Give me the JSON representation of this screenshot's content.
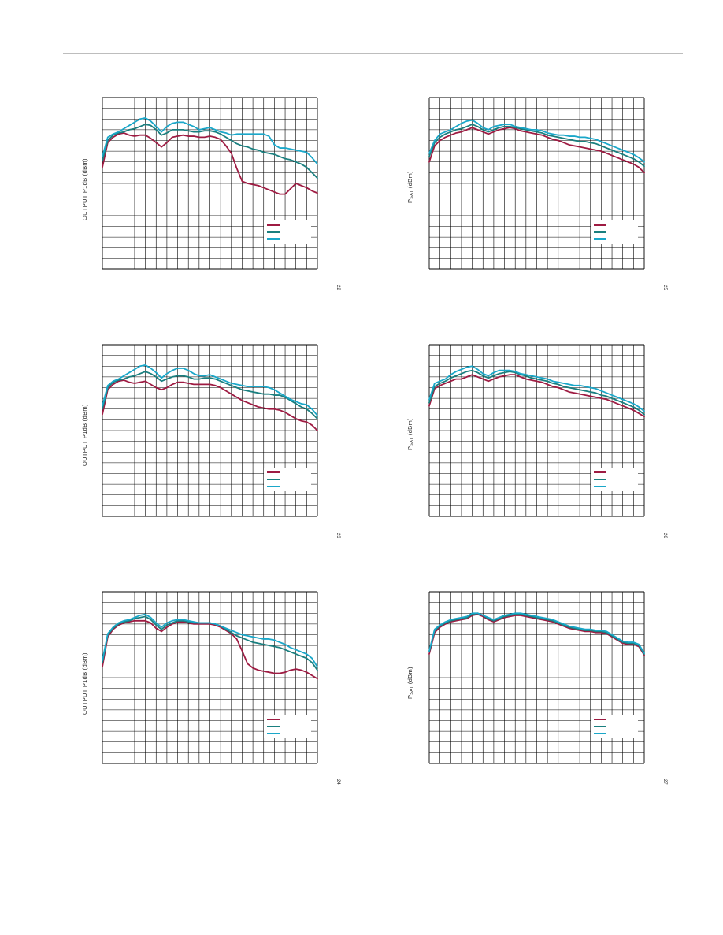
{
  "colors": {
    "series_a": "#9e1b42",
    "series_b": "#1a7f7f",
    "series_c": "#1aa7c9",
    "grid": "#000000"
  },
  "chart_data": [
    {
      "type": "line",
      "panel": "top-left",
      "ylabel": "OUTPUT P1dB (dBm)",
      "figure_number": "22",
      "grid": true,
      "legend_placement": "bottom-right",
      "x": [
        0,
        0.5,
        1,
        1.5,
        2,
        2.5,
        3,
        3.5,
        4,
        4.5,
        5,
        5.5,
        6,
        6.5,
        7,
        7.5,
        8,
        8.5,
        9,
        9.5,
        10,
        10.5,
        11,
        11.5,
        12,
        12.5,
        13,
        13.5,
        14,
        14.5,
        15,
        15.5,
        16,
        16.5,
        17,
        17.5,
        18,
        18.5,
        19,
        19.5,
        20
      ],
      "xlim": [
        0,
        20
      ],
      "ylim": [
        0,
        16
      ],
      "series": [
        {
          "values": [
            9.5,
            11.8,
            12.3,
            12.6,
            12.7,
            12.5,
            12.4,
            12.5,
            12.5,
            12.2,
            11.8,
            11.4,
            11.8,
            12.3,
            12.4,
            12.5,
            12.4,
            12.4,
            12.3,
            12.3,
            12.4,
            12.3,
            12.1,
            11.5,
            10.8,
            9.4,
            8.2,
            8.0,
            7.9,
            7.8,
            7.6,
            7.4,
            7.2,
            7.0,
            7.0,
            7.5,
            8.0,
            7.8,
            7.6,
            7.3,
            7.1
          ]
        },
        {
          "values": [
            10.1,
            12.0,
            12.5,
            12.7,
            12.8,
            13.0,
            13.1,
            13.3,
            13.5,
            13.4,
            13.0,
            12.5,
            12.7,
            13.0,
            13.0,
            13.0,
            12.9,
            12.8,
            12.8,
            12.9,
            12.9,
            12.8,
            12.6,
            12.3,
            12.0,
            11.7,
            11.5,
            11.4,
            11.2,
            11.1,
            10.9,
            10.8,
            10.7,
            10.5,
            10.3,
            10.2,
            10.0,
            9.8,
            9.5,
            9.0,
            8.5
          ]
        },
        {
          "values": [
            10.5,
            12.3,
            12.6,
            12.8,
            13.1,
            13.4,
            13.7,
            14.0,
            14.1,
            13.8,
            13.3,
            12.8,
            13.3,
            13.6,
            13.7,
            13.7,
            13.5,
            13.3,
            13.0,
            13.1,
            13.2,
            13.0,
            12.8,
            12.7,
            12.5,
            12.6,
            12.6,
            12.6,
            12.6,
            12.6,
            12.6,
            12.4,
            11.6,
            11.3,
            11.3,
            11.2,
            11.1,
            11.0,
            10.9,
            10.4,
            9.8
          ]
        }
      ]
    },
    {
      "type": "line",
      "panel": "top-right",
      "ylabel": "PSAT (dBm)",
      "figure_number": "25",
      "grid": true,
      "legend_placement": "bottom-right",
      "x": [
        0,
        0.5,
        1,
        1.5,
        2,
        2.5,
        3,
        3.5,
        4,
        4.5,
        5,
        5.5,
        6,
        6.5,
        7,
        7.5,
        8,
        8.5,
        9,
        9.5,
        10,
        10.5,
        11,
        11.5,
        12,
        12.5,
        13,
        13.5,
        14,
        14.5,
        15,
        15.5,
        16,
        16.5,
        17,
        17.5,
        18,
        18.5,
        19,
        19.5,
        20
      ],
      "xlim": [
        0,
        20
      ],
      "ylim": [
        0,
        16
      ],
      "series": [
        {
          "values": [
            10.0,
            11.5,
            12.0,
            12.3,
            12.5,
            12.7,
            12.8,
            13.0,
            13.2,
            13.0,
            12.8,
            12.6,
            12.8,
            13.0,
            13.1,
            13.2,
            13.1,
            12.9,
            12.8,
            12.7,
            12.6,
            12.5,
            12.3,
            12.1,
            12.0,
            11.8,
            11.6,
            11.5,
            11.4,
            11.3,
            11.2,
            11.1,
            11.0,
            10.8,
            10.6,
            10.4,
            10.2,
            10.0,
            9.8,
            9.5,
            9.0
          ]
        },
        {
          "values": [
            10.5,
            11.8,
            12.3,
            12.6,
            12.8,
            13.0,
            13.1,
            13.3,
            13.5,
            13.3,
            13.0,
            12.8,
            13.0,
            13.2,
            13.3,
            13.3,
            13.2,
            13.1,
            13.0,
            12.9,
            12.8,
            12.7,
            12.5,
            12.4,
            12.3,
            12.2,
            12.1,
            12.0,
            11.9,
            11.9,
            11.8,
            11.7,
            11.5,
            11.3,
            11.1,
            10.9,
            10.7,
            10.5,
            10.3,
            10.0,
            9.6
          ]
        },
        {
          "values": [
            10.8,
            12.0,
            12.6,
            12.8,
            13.0,
            13.3,
            13.6,
            13.8,
            13.9,
            13.6,
            13.2,
            13.0,
            13.3,
            13.4,
            13.5,
            13.5,
            13.3,
            13.2,
            13.1,
            13.0,
            13.0,
            12.9,
            12.7,
            12.6,
            12.5,
            12.5,
            12.4,
            12.4,
            12.3,
            12.3,
            12.2,
            12.1,
            11.9,
            11.7,
            11.5,
            11.3,
            11.1,
            10.9,
            10.7,
            10.4,
            10.0
          ]
        }
      ]
    },
    {
      "type": "line",
      "panel": "middle-left",
      "ylabel": "OUTPUT P1dB (dBm)",
      "figure_number": "23",
      "grid": true,
      "legend_placement": "bottom-right",
      "x": [
        0,
        0.5,
        1,
        1.5,
        2,
        2.5,
        3,
        3.5,
        4,
        4.5,
        5,
        5.5,
        6,
        6.5,
        7,
        7.5,
        8,
        8.5,
        9,
        9.5,
        10,
        10.5,
        11,
        11.5,
        12,
        12.5,
        13,
        13.5,
        14,
        14.5,
        15,
        15.5,
        16,
        16.5,
        17,
        17.5,
        18,
        18.5,
        19,
        19.5,
        20
      ],
      "xlim": [
        0,
        20
      ],
      "ylim": [
        0,
        16
      ],
      "series": [
        {
          "values": [
            9.5,
            11.8,
            12.3,
            12.6,
            12.7,
            12.5,
            12.4,
            12.5,
            12.6,
            12.3,
            12.0,
            11.8,
            12.0,
            12.3,
            12.5,
            12.5,
            12.4,
            12.3,
            12.3,
            12.3,
            12.3,
            12.2,
            12.0,
            11.7,
            11.4,
            11.1,
            10.8,
            10.6,
            10.4,
            10.2,
            10.1,
            10.0,
            10.0,
            9.9,
            9.7,
            9.4,
            9.1,
            8.9,
            8.8,
            8.5,
            8.0
          ]
        },
        {
          "values": [
            10.0,
            12.0,
            12.5,
            12.7,
            12.8,
            13.0,
            13.1,
            13.3,
            13.5,
            13.3,
            13.0,
            12.6,
            12.8,
            13.0,
            13.1,
            13.1,
            13.0,
            12.8,
            12.8,
            12.9,
            12.9,
            12.8,
            12.6,
            12.4,
            12.2,
            12.0,
            11.8,
            11.7,
            11.6,
            11.5,
            11.4,
            11.4,
            11.3,
            11.3,
            11.1,
            10.8,
            10.5,
            10.2,
            10.0,
            9.6,
            9.1
          ]
        },
        {
          "values": [
            10.3,
            12.2,
            12.6,
            12.8,
            13.1,
            13.4,
            13.7,
            14.0,
            14.1,
            13.8,
            13.4,
            12.9,
            13.3,
            13.6,
            13.8,
            13.8,
            13.6,
            13.3,
            13.1,
            13.1,
            13.2,
            13.0,
            12.8,
            12.6,
            12.4,
            12.3,
            12.2,
            12.1,
            12.1,
            12.1,
            12.1,
            12.0,
            11.8,
            11.5,
            11.2,
            10.9,
            10.7,
            10.5,
            10.4,
            10.0,
            9.4
          ]
        }
      ]
    },
    {
      "type": "line",
      "panel": "middle-right",
      "ylabel": "PSAT (dBm)",
      "figure_number": "26",
      "grid": true,
      "legend_placement": "bottom-right",
      "x": [
        0,
        0.5,
        1,
        1.5,
        2,
        2.5,
        3,
        3.5,
        4,
        4.5,
        5,
        5.5,
        6,
        6.5,
        7,
        7.5,
        8,
        8.5,
        9,
        9.5,
        10,
        10.5,
        11,
        11.5,
        12,
        12.5,
        13,
        13.5,
        14,
        14.5,
        15,
        15.5,
        16,
        16.5,
        17,
        17.5,
        18,
        18.5,
        19,
        19.5,
        20
      ],
      "xlim": [
        0,
        20
      ],
      "ylim": [
        0,
        16
      ],
      "series": [
        {
          "values": [
            10.3,
            11.9,
            12.2,
            12.4,
            12.6,
            12.8,
            12.8,
            13.0,
            13.2,
            13.0,
            12.8,
            12.6,
            12.8,
            13.0,
            13.1,
            13.2,
            13.2,
            13.0,
            12.8,
            12.7,
            12.6,
            12.5,
            12.3,
            12.1,
            12.0,
            11.8,
            11.6,
            11.5,
            11.4,
            11.3,
            11.2,
            11.1,
            11.0,
            10.9,
            10.7,
            10.5,
            10.3,
            10.1,
            9.9,
            9.6,
            9.3
          ]
        },
        {
          "values": [
            10.6,
            12.1,
            12.4,
            12.6,
            12.9,
            13.1,
            13.3,
            13.5,
            13.6,
            13.4,
            13.1,
            12.9,
            13.1,
            13.3,
            13.4,
            13.5,
            13.4,
            13.2,
            13.1,
            12.9,
            12.8,
            12.7,
            12.6,
            12.4,
            12.3,
            12.1,
            12.0,
            11.9,
            11.8,
            11.7,
            11.6,
            11.5,
            11.3,
            11.2,
            11.0,
            10.8,
            10.6,
            10.4,
            10.2,
            9.9,
            9.5
          ]
        },
        {
          "values": [
            10.9,
            12.4,
            12.6,
            12.8,
            13.2,
            13.5,
            13.7,
            13.9,
            14.0,
            13.7,
            13.3,
            13.1,
            13.4,
            13.6,
            13.6,
            13.6,
            13.5,
            13.3,
            13.2,
            13.1,
            13.0,
            12.9,
            12.8,
            12.6,
            12.5,
            12.4,
            12.3,
            12.2,
            12.2,
            12.1,
            12.0,
            11.9,
            11.7,
            11.5,
            11.3,
            11.1,
            10.9,
            10.7,
            10.5,
            10.2,
            9.8
          ]
        }
      ]
    },
    {
      "type": "line",
      "panel": "bottom-left",
      "ylabel": "OUTPUT P1dB (dBm)",
      "figure_number": "24",
      "grid": true,
      "legend_placement": "bottom-right",
      "x": [
        0,
        0.5,
        1,
        1.5,
        2,
        2.5,
        3,
        3.5,
        4,
        4.5,
        5,
        5.5,
        6,
        6.5,
        7,
        7.5,
        8,
        8.5,
        9,
        9.5,
        10,
        10.5,
        11,
        11.5,
        12,
        12.5,
        13,
        13.5,
        14,
        14.5,
        15,
        15.5,
        16,
        16.5,
        17,
        17.5,
        18,
        18.5,
        19,
        19.5,
        20
      ],
      "xlim": [
        0,
        20
      ],
      "ylim": [
        0,
        16
      ],
      "series": [
        {
          "values": [
            9.0,
            11.8,
            12.5,
            12.9,
            13.1,
            13.2,
            13.3,
            13.3,
            13.3,
            13.1,
            12.6,
            12.3,
            12.7,
            13.0,
            13.2,
            13.2,
            13.1,
            13.0,
            13.0,
            13.0,
            13.0,
            12.9,
            12.7,
            12.4,
            12.1,
            11.6,
            10.5,
            9.3,
            8.9,
            8.7,
            8.6,
            8.5,
            8.4,
            8.4,
            8.5,
            8.7,
            8.8,
            8.7,
            8.5,
            8.2,
            7.9
          ]
        },
        {
          "values": [
            9.4,
            12.0,
            12.6,
            13.0,
            13.2,
            13.3,
            13.5,
            13.6,
            13.7,
            13.4,
            12.9,
            12.5,
            12.9,
            13.1,
            13.3,
            13.3,
            13.2,
            13.1,
            13.1,
            13.1,
            13.1,
            13.0,
            12.8,
            12.5,
            12.2,
            11.9,
            11.7,
            11.5,
            11.3,
            11.2,
            11.1,
            11.0,
            10.9,
            10.8,
            10.6,
            10.4,
            10.2,
            10.0,
            9.8,
            9.4,
            8.7
          ]
        },
        {
          "values": [
            9.6,
            12.1,
            12.7,
            13.1,
            13.3,
            13.4,
            13.6,
            13.8,
            13.9,
            13.6,
            13.1,
            12.7,
            13.1,
            13.3,
            13.4,
            13.4,
            13.3,
            13.2,
            13.1,
            13.1,
            13.1,
            13.0,
            12.8,
            12.6,
            12.4,
            12.2,
            12.0,
            11.9,
            11.8,
            11.7,
            11.6,
            11.6,
            11.5,
            11.3,
            11.1,
            10.8,
            10.6,
            10.4,
            10.2,
            9.8,
            9.0
          ]
        }
      ]
    },
    {
      "type": "line",
      "panel": "bottom-right",
      "ylabel": "PSAT (dBm)",
      "figure_number": "27",
      "grid": true,
      "legend_placement": "bottom-right",
      "x": [
        0,
        0.5,
        1,
        1.5,
        2,
        2.5,
        3,
        3.5,
        4,
        4.5,
        5,
        5.5,
        6,
        6.5,
        7,
        7.5,
        8,
        8.5,
        9,
        9.5,
        10,
        10.5,
        11,
        11.5,
        12,
        12.5,
        13,
        13.5,
        14,
        14.5,
        15,
        15.5,
        16,
        16.5,
        17,
        17.5,
        18,
        18.5,
        19,
        19.5,
        20
      ],
      "xlim": [
        0,
        20
      ],
      "ylim": [
        0,
        16
      ],
      "series": [
        {
          "values": [
            10.2,
            12.2,
            12.7,
            13.0,
            13.2,
            13.3,
            13.4,
            13.5,
            13.8,
            13.9,
            13.7,
            13.4,
            13.2,
            13.4,
            13.6,
            13.7,
            13.8,
            13.8,
            13.7,
            13.6,
            13.5,
            13.4,
            13.3,
            13.2,
            13.0,
            12.8,
            12.6,
            12.5,
            12.4,
            12.3,
            12.3,
            12.2,
            12.2,
            12.1,
            11.8,
            11.5,
            11.2,
            11.1,
            11.1,
            10.9,
            10.1
          ]
        },
        {
          "values": [
            10.4,
            12.4,
            12.8,
            13.1,
            13.3,
            13.4,
            13.5,
            13.6,
            13.9,
            14.0,
            13.8,
            13.5,
            13.3,
            13.5,
            13.7,
            13.8,
            13.9,
            13.9,
            13.8,
            13.7,
            13.6,
            13.5,
            13.4,
            13.3,
            13.1,
            12.9,
            12.7,
            12.6,
            12.5,
            12.4,
            12.4,
            12.3,
            12.3,
            12.2,
            11.9,
            11.6,
            11.3,
            11.2,
            11.2,
            11.0,
            10.2
          ]
        },
        {
          "values": [
            10.5,
            12.5,
            12.9,
            13.2,
            13.4,
            13.5,
            13.6,
            13.7,
            14.0,
            14.0,
            13.8,
            13.6,
            13.4,
            13.6,
            13.8,
            13.9,
            14.0,
            14.0,
            13.9,
            13.8,
            13.7,
            13.6,
            13.5,
            13.4,
            13.2,
            13.0,
            12.8,
            12.7,
            12.6,
            12.5,
            12.5,
            12.4,
            12.4,
            12.3,
            12.0,
            11.7,
            11.4,
            11.3,
            11.3,
            11.1,
            10.3
          ]
        }
      ]
    }
  ]
}
